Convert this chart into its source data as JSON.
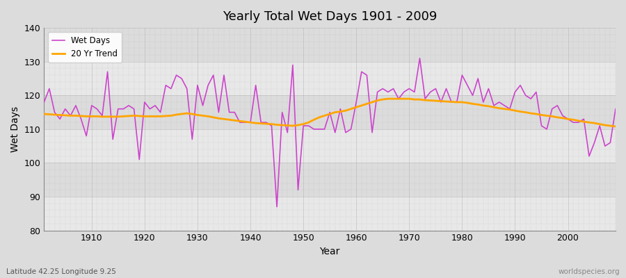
{
  "title": "Yearly Total Wet Days 1901 - 2009",
  "xlabel": "Year",
  "ylabel": "Wet Days",
  "footnote_left": "Latitude 42.25 Longitude 9.25",
  "footnote_right": "worldspecies.org",
  "legend_labels": [
    "Wet Days",
    "20 Yr Trend"
  ],
  "wet_days_color": "#CC44CC",
  "trend_color": "#FFA500",
  "bg_color": "#DCDCDC",
  "plot_bg_color": "#E8E8E8",
  "band_color_light": "#E8E8E8",
  "band_color_dark": "#DCDCDC",
  "ylim": [
    80,
    140
  ],
  "xlim": [
    1901,
    2009
  ],
  "years": [
    1901,
    1902,
    1903,
    1904,
    1905,
    1906,
    1907,
    1908,
    1909,
    1910,
    1911,
    1912,
    1913,
    1914,
    1915,
    1916,
    1917,
    1918,
    1919,
    1920,
    1921,
    1922,
    1923,
    1924,
    1925,
    1926,
    1927,
    1928,
    1929,
    1930,
    1931,
    1932,
    1933,
    1934,
    1935,
    1936,
    1937,
    1938,
    1939,
    1940,
    1941,
    1942,
    1943,
    1944,
    1945,
    1946,
    1947,
    1948,
    1949,
    1950,
    1951,
    1952,
    1953,
    1954,
    1955,
    1956,
    1957,
    1958,
    1959,
    1960,
    1961,
    1962,
    1963,
    1964,
    1965,
    1966,
    1967,
    1968,
    1969,
    1970,
    1971,
    1972,
    1973,
    1974,
    1975,
    1976,
    1977,
    1978,
    1979,
    1980,
    1981,
    1982,
    1983,
    1984,
    1985,
    1986,
    1987,
    1988,
    1989,
    1990,
    1991,
    1992,
    1993,
    1994,
    1995,
    1996,
    1997,
    1998,
    1999,
    2000,
    2001,
    2002,
    2003,
    2004,
    2005,
    2006,
    2007,
    2008,
    2009
  ],
  "wet_days": [
    118,
    122,
    115,
    113,
    116,
    114,
    117,
    113,
    108,
    117,
    116,
    114,
    127,
    107,
    116,
    116,
    117,
    116,
    101,
    118,
    116,
    117,
    115,
    123,
    122,
    126,
    125,
    122,
    107,
    123,
    117,
    123,
    126,
    115,
    126,
    115,
    115,
    112,
    112,
    112,
    123,
    112,
    112,
    111,
    87,
    115,
    109,
    129,
    92,
    111,
    111,
    110,
    110,
    110,
    115,
    109,
    116,
    109,
    110,
    118,
    127,
    126,
    109,
    121,
    122,
    121,
    122,
    119,
    121,
    122,
    121,
    131,
    119,
    121,
    122,
    118,
    122,
    118,
    118,
    126,
    123,
    120,
    125,
    118,
    122,
    117,
    118,
    117,
    116,
    121,
    123,
    120,
    119,
    121,
    111,
    110,
    116,
    117,
    114,
    113,
    112,
    112,
    113,
    102,
    106,
    111,
    105,
    106,
    116
  ],
  "trend": [
    114.5,
    114.4,
    114.3,
    114.2,
    114.1,
    114.0,
    114.0,
    113.9,
    113.8,
    113.8,
    113.8,
    113.7,
    113.7,
    113.7,
    113.7,
    113.8,
    113.9,
    114.0,
    113.9,
    113.8,
    113.8,
    113.8,
    113.8,
    113.9,
    114.0,
    114.3,
    114.5,
    114.7,
    114.5,
    114.2,
    114.0,
    113.8,
    113.5,
    113.2,
    113.0,
    112.8,
    112.6,
    112.4,
    112.2,
    112.0,
    111.8,
    111.7,
    111.6,
    111.5,
    111.3,
    111.2,
    111.1,
    111.0,
    111.2,
    111.5,
    112.0,
    112.8,
    113.5,
    114.0,
    114.5,
    115.0,
    115.2,
    115.5,
    116.0,
    116.5,
    117.0,
    117.5,
    118.0,
    118.5,
    118.8,
    119.0,
    119.0,
    119.0,
    119.0,
    119.0,
    118.8,
    118.8,
    118.6,
    118.5,
    118.4,
    118.3,
    118.2,
    118.1,
    118.0,
    118.0,
    117.8,
    117.5,
    117.3,
    117.0,
    116.8,
    116.5,
    116.2,
    116.0,
    115.8,
    115.5,
    115.2,
    115.0,
    114.7,
    114.5,
    114.2,
    114.0,
    113.8,
    113.5,
    113.3,
    113.0,
    112.8,
    112.5,
    112.2,
    112.0,
    111.8,
    111.5,
    111.2,
    111.0,
    110.8
  ]
}
